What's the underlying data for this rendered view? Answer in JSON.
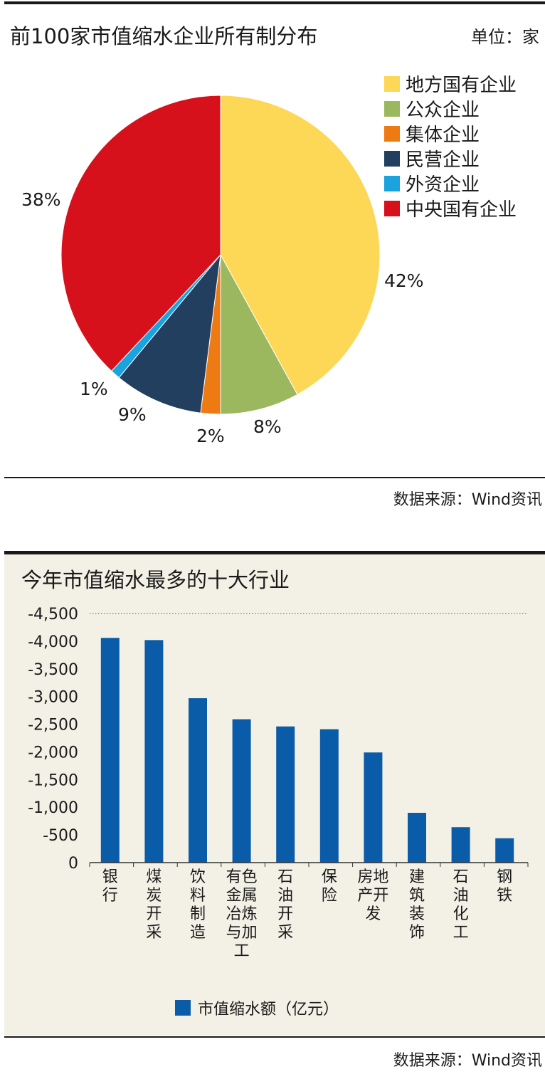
{
  "panel1": {
    "title": "前100家市值缩水企业所有制分布",
    "unit": "单位：家",
    "source": "数据来源：Wind资讯"
  },
  "panel2": {
    "title": "今年市值缩水最多的十大行业",
    "legend_label": "市值缩水额（亿元）",
    "source": "数据来源：Wind资讯"
  },
  "chart_data": [
    {
      "type": "pie",
      "title": "前100家市值缩水企业所有制分布",
      "unit": "单位：家",
      "legend_position": "top-right",
      "slices": [
        {
          "name": "地方国有企业",
          "value": 42,
          "label": "42%",
          "color": "#fdd756"
        },
        {
          "name": "公众企业",
          "value": 8,
          "label": "8%",
          "color": "#9bb85f"
        },
        {
          "name": "集体企业",
          "value": 2,
          "label": "2%",
          "color": "#ee7a14"
        },
        {
          "name": "民营企业",
          "value": 9,
          "label": "9%",
          "color": "#233f5f"
        },
        {
          "name": "外资企业",
          "value": 1,
          "label": "1%",
          "color": "#1aa3dd"
        },
        {
          "name": "中央国有企业",
          "value": 38,
          "label": "38%",
          "color": "#d7111c"
        }
      ]
    },
    {
      "type": "bar",
      "title": "今年市值缩水最多的十大行业",
      "categories": [
        "银行",
        "煤炭开采",
        "饮料制造",
        "有色金属冶炼与加工",
        "石油开采",
        "保险",
        "房地产开发",
        "建筑装饰",
        "石油化工",
        "钢铁"
      ],
      "series": [
        {
          "name": "市值缩水额（亿元）",
          "values": [
            -4060,
            -4020,
            -2970,
            -2590,
            -2460,
            -2410,
            -1990,
            -900,
            -640,
            -440
          ],
          "color": "#0b5ca8"
        }
      ],
      "ylim": [
        0,
        -4500
      ],
      "yticks": [
        0,
        -500,
        -1000,
        -1500,
        -2000,
        -2500,
        -3000,
        -3500,
        -4000,
        -4500
      ],
      "ytick_labels": [
        "0",
        "-500",
        "-1,000",
        "-1,500",
        "-2,000",
        "-2,500",
        "-3,000",
        "-3,500",
        "-4,000",
        "-4,500"
      ],
      "grid": "top-dotted",
      "legend_position": "bottom"
    }
  ]
}
